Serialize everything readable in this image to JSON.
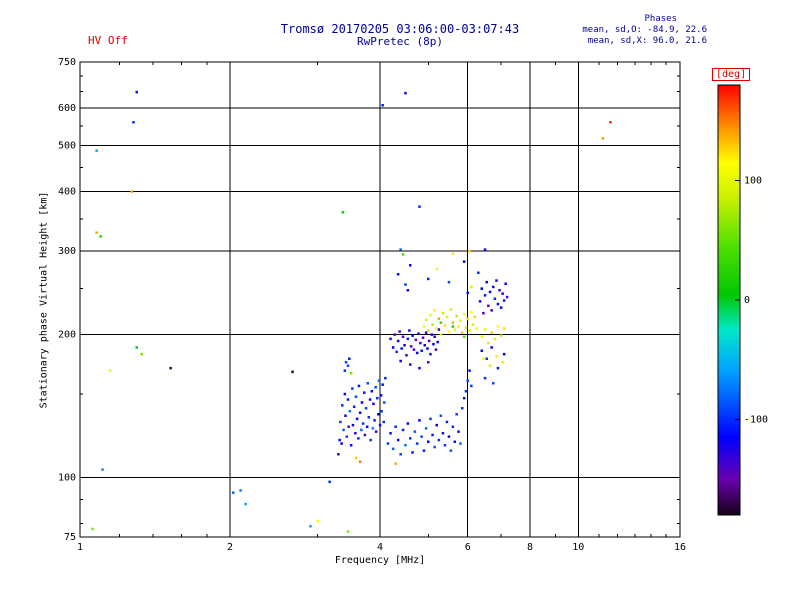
{
  "header": {
    "hv_status": "HV Off",
    "title": "Tromsø 20170205 03:06:00-03:07:43",
    "subtitle": "RwPretec (8p)",
    "phases_title": "Phases",
    "phases_line1": "mean, sd,O: -84.9, 22.6",
    "phases_line2": "mean, sd,X:  96.0, 21.6"
  },
  "colors": {
    "title_text": "#00009c",
    "hv_text": "#dd0000",
    "axis": "#000000",
    "deg_label": "#dd0000"
  },
  "chart_data": {
    "type": "scatter",
    "title": "Tromsø 20170205 03:06:00-03:07:43",
    "subtitle": "RwPretec (8p)",
    "xlabel": "Frequency [MHz]",
    "ylabel": "Stationary phase Virtual Height [km]",
    "x_scale": "log",
    "y_scale": "log",
    "xlim": [
      1,
      16
    ],
    "ylim": [
      75,
      750
    ],
    "x_ticks": [
      1,
      2,
      4,
      6,
      8,
      10,
      16
    ],
    "y_ticks": [
      75,
      100,
      200,
      300,
      400,
      500,
      600,
      750
    ],
    "x_gridlines": [
      2,
      4,
      6,
      8,
      10
    ],
    "y_gridlines": [
      100,
      200,
      300,
      400,
      500,
      600
    ],
    "x_minor": [
      1.2,
      1.4,
      1.6,
      1.8,
      3,
      5,
      7,
      9,
      11,
      12,
      13,
      14,
      15
    ],
    "y_minor": [
      80,
      90,
      150,
      250,
      350,
      450,
      550,
      650,
      700
    ],
    "grid": true,
    "legend_position": "none",
    "colorbar": {
      "label": "[deg]",
      "ticks": [
        100,
        0,
        -100
      ],
      "range": [
        -180,
        180
      ],
      "stops": [
        [
          -180,
          "#140018"
        ],
        [
          -150,
          "#6a00b0"
        ],
        [
          -115,
          "#0000ff"
        ],
        [
          -60,
          "#00a0ff"
        ],
        [
          -25,
          "#00e8c8"
        ],
        [
          5,
          "#00c800"
        ],
        [
          45,
          "#50e000"
        ],
        [
          85,
          "#c8f000"
        ],
        [
          115,
          "#ffff00"
        ],
        [
          145,
          "#ff9000"
        ],
        [
          180,
          "#ff0000"
        ]
      ]
    },
    "points": [
      [
        3.3,
        112,
        -130
      ],
      [
        3.32,
        120,
        -110
      ],
      [
        3.33,
        131,
        -95
      ],
      [
        3.35,
        118,
        -120
      ],
      [
        3.36,
        142,
        -100
      ],
      [
        3.38,
        126,
        -85
      ],
      [
        3.4,
        150,
        -115
      ],
      [
        3.41,
        135,
        -125
      ],
      [
        3.43,
        122,
        -90
      ],
      [
        3.45,
        146,
        -105
      ],
      [
        3.46,
        128,
        -140
      ],
      [
        3.48,
        138,
        -75
      ],
      [
        3.5,
        117,
        -110
      ],
      [
        3.52,
        154,
        -95
      ],
      [
        3.53,
        129,
        -120
      ],
      [
        3.55,
        141,
        -100
      ],
      [
        3.57,
        124,
        -130
      ],
      [
        3.58,
        148,
        -88
      ],
      [
        3.6,
        133,
        -112
      ],
      [
        3.62,
        121,
        -98
      ],
      [
        3.63,
        156,
        -106
      ],
      [
        3.65,
        137,
        -122
      ],
      [
        3.67,
        126,
        -80
      ],
      [
        3.68,
        144,
        -115
      ],
      [
        3.7,
        130,
        -95
      ],
      [
        3.72,
        151,
        -108
      ],
      [
        3.73,
        123,
        -135
      ],
      [
        3.75,
        140,
        -92
      ],
      [
        3.77,
        128,
        -118
      ],
      [
        3.78,
        158,
        -85
      ],
      [
        3.8,
        134,
        -102
      ],
      [
        3.82,
        146,
        -125
      ],
      [
        3.83,
        120,
        -96
      ],
      [
        3.85,
        152,
        -110
      ],
      [
        3.87,
        127,
        -70
      ],
      [
        3.88,
        143,
        -118
      ],
      [
        3.9,
        132,
        -104
      ],
      [
        3.92,
        155,
        -90
      ],
      [
        3.93,
        125,
        -128
      ],
      [
        3.95,
        147,
        -100
      ],
      [
        3.97,
        136,
        -115
      ],
      [
        3.98,
        160,
        -82
      ],
      [
        4.0,
        129,
        -108
      ],
      [
        4.02,
        149,
        -120
      ],
      [
        4.03,
        138,
        -94
      ],
      [
        4.05,
        157,
        -112
      ],
      [
        4.07,
        131,
        -100
      ],
      [
        4.08,
        144,
        -86
      ],
      [
        4.1,
        162,
        -105
      ],
      [
        3.58,
        110,
        130
      ],
      [
        3.65,
        108,
        150
      ],
      [
        3.5,
        166,
        60
      ],
      [
        3.4,
        168,
        -100
      ],
      [
        3.45,
        172,
        -90
      ],
      [
        3.42,
        175,
        -95
      ],
      [
        3.47,
        178,
        -105
      ],
      [
        4.15,
        118,
        -95
      ],
      [
        4.2,
        124,
        -110
      ],
      [
        4.25,
        115,
        -80
      ],
      [
        4.3,
        128,
        -100
      ],
      [
        4.35,
        120,
        -120
      ],
      [
        4.4,
        112,
        -90
      ],
      [
        4.45,
        126,
        -105
      ],
      [
        4.5,
        117,
        -75
      ],
      [
        4.55,
        130,
        -115
      ],
      [
        4.6,
        121,
        -95
      ],
      [
        4.65,
        113,
        -108
      ],
      [
        4.7,
        125,
        -85
      ],
      [
        4.75,
        118,
        -100
      ],
      [
        4.8,
        132,
        -118
      ],
      [
        4.85,
        122,
        -92
      ],
      [
        4.9,
        114,
        -106
      ],
      [
        4.95,
        127,
        -78
      ],
      [
        5.0,
        119,
        -112
      ],
      [
        5.05,
        133,
        -96
      ],
      [
        5.1,
        123,
        -104
      ],
      [
        5.15,
        116,
        -88
      ],
      [
        5.2,
        129,
        -116
      ],
      [
        5.25,
        120,
        -98
      ],
      [
        5.3,
        135,
        -84
      ],
      [
        5.35,
        124,
        -110
      ],
      [
        5.4,
        117,
        -94
      ],
      [
        5.45,
        131,
        -102
      ],
      [
        5.5,
        122,
        -120
      ],
      [
        5.55,
        114,
        -86
      ],
      [
        5.6,
        128,
        -100
      ],
      [
        5.65,
        119,
        -108
      ],
      [
        5.7,
        136,
        -92
      ],
      [
        5.75,
        125,
        -114
      ],
      [
        5.8,
        118,
        -80
      ],
      [
        5.85,
        140,
        -98
      ],
      [
        5.9,
        147,
        -105
      ],
      [
        5.95,
        152,
        -100
      ],
      [
        6.0,
        160,
        -90
      ],
      [
        6.05,
        168,
        -110
      ],
      [
        6.1,
        156,
        -95
      ],
      [
        4.3,
        107,
        140
      ],
      [
        4.2,
        196,
        -130
      ],
      [
        4.25,
        188,
        -115
      ],
      [
        4.28,
        200,
        -145
      ],
      [
        4.32,
        184,
        -100
      ],
      [
        4.35,
        194,
        -125
      ],
      [
        4.38,
        203,
        -140
      ],
      [
        4.42,
        187,
        -110
      ],
      [
        4.45,
        198,
        -150
      ],
      [
        4.48,
        190,
        -120
      ],
      [
        4.52,
        181,
        -135
      ],
      [
        4.55,
        196,
        -105
      ],
      [
        4.58,
        204,
        -128
      ],
      [
        4.62,
        189,
        -142
      ],
      [
        4.65,
        199,
        -112
      ],
      [
        4.68,
        186,
        -132
      ],
      [
        4.72,
        195,
        -148
      ],
      [
        4.75,
        183,
        -118
      ],
      [
        4.78,
        201,
        -126
      ],
      [
        4.82,
        192,
        -138
      ],
      [
        4.85,
        185,
        -108
      ],
      [
        4.88,
        197,
        -144
      ],
      [
        4.92,
        190,
        -122
      ],
      [
        4.95,
        202,
        -134
      ],
      [
        4.98,
        187,
        -114
      ],
      [
        5.02,
        194,
        -146
      ],
      [
        5.05,
        182,
        -124
      ],
      [
        5.08,
        200,
        -136
      ],
      [
        5.12,
        191,
        -116
      ],
      [
        5.15,
        198,
        -128
      ],
      [
        5.18,
        186,
        -140
      ],
      [
        5.22,
        193,
        -120
      ],
      [
        5.25,
        205,
        -132
      ],
      [
        4.4,
        176,
        -118
      ],
      [
        4.6,
        173,
        -130
      ],
      [
        4.8,
        170,
        -122
      ],
      [
        5.0,
        175,
        -140
      ],
      [
        4.9,
        208,
        110
      ],
      [
        4.95,
        215,
        90
      ],
      [
        5.0,
        204,
        130
      ],
      [
        5.05,
        220,
        100
      ],
      [
        5.1,
        210,
        80
      ],
      [
        5.15,
        225,
        120
      ],
      [
        5.2,
        206,
        95
      ],
      [
        5.25,
        216,
        140
      ],
      [
        5.3,
        200,
        105
      ],
      [
        5.35,
        222,
        85
      ],
      [
        5.4,
        209,
        125
      ],
      [
        5.45,
        218,
        100
      ],
      [
        5.5,
        203,
        115
      ],
      [
        5.55,
        226,
        90
      ],
      [
        5.6,
        212,
        135
      ],
      [
        5.65,
        205,
        105
      ],
      [
        5.7,
        219,
        80
      ],
      [
        5.75,
        208,
        120
      ],
      [
        5.8,
        214,
        95
      ],
      [
        5.85,
        202,
        130
      ],
      [
        5.9,
        221,
        110
      ],
      [
        5.95,
        207,
        88
      ],
      [
        6.0,
        216,
        125
      ],
      [
        6.05,
        204,
        100
      ],
      [
        6.1,
        223,
        115
      ],
      [
        6.15,
        210,
        92
      ],
      [
        6.2,
        218,
        128
      ],
      [
        6.25,
        206,
        108
      ],
      [
        5.3,
        212,
        30
      ],
      [
        5.6,
        208,
        20
      ],
      [
        5.9,
        198,
        45
      ],
      [
        6.35,
        235,
        -130
      ],
      [
        6.4,
        250,
        -115
      ],
      [
        6.45,
        222,
        -140
      ],
      [
        6.5,
        242,
        -105
      ],
      [
        6.55,
        258,
        -125
      ],
      [
        6.6,
        230,
        -145
      ],
      [
        6.65,
        246,
        -110
      ],
      [
        6.7,
        225,
        -135
      ],
      [
        6.75,
        252,
        -120
      ],
      [
        6.8,
        238,
        -100
      ],
      [
        6.85,
        260,
        -128
      ],
      [
        6.9,
        232,
        -112
      ],
      [
        6.95,
        248,
        -138
      ],
      [
        7.0,
        228,
        -118
      ],
      [
        7.05,
        244,
        -130
      ],
      [
        7.1,
        236,
        -104
      ],
      [
        7.15,
        256,
        -124
      ],
      [
        7.2,
        240,
        -142
      ],
      [
        6.4,
        198,
        105
      ],
      [
        6.5,
        205,
        120
      ],
      [
        6.6,
        192,
        90
      ],
      [
        6.7,
        202,
        130
      ],
      [
        6.8,
        196,
        100
      ],
      [
        6.9,
        208,
        115
      ],
      [
        7.0,
        199,
        85
      ],
      [
        7.1,
        206,
        125
      ],
      [
        6.45,
        178,
        110
      ],
      [
        6.65,
        172,
        95
      ],
      [
        6.85,
        180,
        120
      ],
      [
        7.05,
        175,
        100
      ],
      [
        6.4,
        185,
        -110
      ],
      [
        6.55,
        178,
        -95
      ],
      [
        6.7,
        188,
        -120
      ],
      [
        6.9,
        170,
        -105
      ],
      [
        7.1,
        182,
        -115
      ],
      [
        6.5,
        162,
        -100
      ],
      [
        6.75,
        158,
        -90
      ],
      [
        4.35,
        268,
        -110
      ],
      [
        4.5,
        255,
        -95
      ],
      [
        4.6,
        280,
        -120
      ],
      [
        4.45,
        295,
        40
      ],
      [
        5.0,
        262,
        -105
      ],
      [
        5.2,
        275,
        110
      ],
      [
        5.5,
        258,
        -90
      ],
      [
        5.9,
        285,
        -115
      ],
      [
        6.1,
        252,
        95
      ],
      [
        6.3,
        270,
        -100
      ],
      [
        4.4,
        302,
        -85
      ],
      [
        5.6,
        296,
        120
      ],
      [
        4.55,
        248,
        -125
      ],
      [
        6.0,
        245,
        -108
      ],
      [
        6.05,
        300,
        130
      ],
      [
        6.5,
        302,
        -120
      ],
      [
        1.06,
        78,
        60
      ],
      [
        1.08,
        328,
        140
      ],
      [
        1.1,
        322,
        20
      ],
      [
        1.08,
        488,
        -55
      ],
      [
        1.28,
        560,
        -100
      ],
      [
        1.3,
        648,
        -110
      ],
      [
        1.27,
        400,
        140
      ],
      [
        1.3,
        188,
        0
      ],
      [
        1.33,
        182,
        60
      ],
      [
        1.15,
        168,
        100
      ],
      [
        1.11,
        104,
        -65
      ],
      [
        1.52,
        170,
        -165
      ],
      [
        2.67,
        167,
        -172
      ],
      [
        2.1,
        94,
        -70
      ],
      [
        2.15,
        88,
        -60
      ],
      [
        2.03,
        93,
        -80
      ],
      [
        3.0,
        81,
        110
      ],
      [
        3.45,
        77,
        60
      ],
      [
        3.17,
        98,
        -100
      ],
      [
        3.37,
        362,
        10
      ],
      [
        4.5,
        645,
        -110
      ],
      [
        4.05,
        608,
        -105
      ],
      [
        11.6,
        560,
        170
      ],
      [
        11.2,
        518,
        140
      ],
      [
        4.8,
        372,
        -100
      ],
      [
        2.9,
        79,
        -60
      ]
    ]
  }
}
